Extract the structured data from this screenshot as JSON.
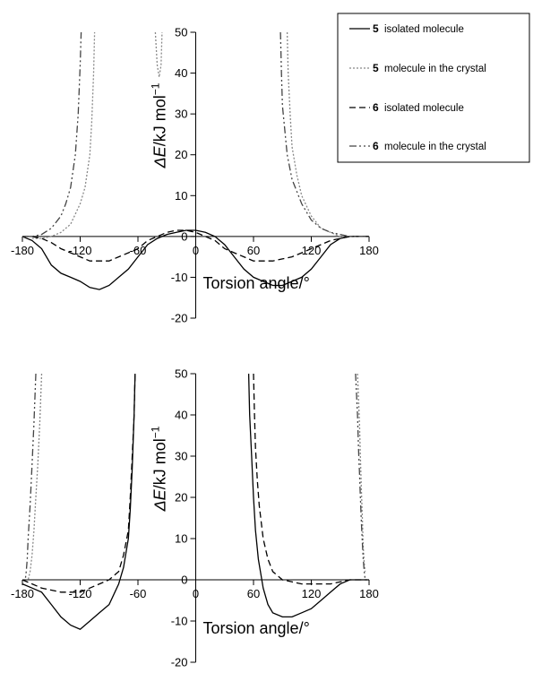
{
  "legend": {
    "items": [
      {
        "num": "5",
        "text": "isolated molecule",
        "dash": "",
        "color": "#000000"
      },
      {
        "num": "5",
        "text": "molecule in the crystal",
        "dash": "2,2",
        "color": "#888888"
      },
      {
        "num": "6",
        "text": "isolated molecule",
        "dash": "7,4",
        "color": "#000000"
      },
      {
        "num": "6",
        "text": "molecule in the crystal",
        "dash": "8,3,2,3,2,3",
        "color": "#444444"
      }
    ]
  },
  "chart_data": [
    {
      "type": "line",
      "ylabel_symbol": "ΔE",
      "ylabel_rest": "/kJ mol",
      "ylabel_sup": "−1",
      "xlabel": "Torsion angle/°",
      "xlim": [
        -180,
        180
      ],
      "ylim": [
        -20,
        50
      ],
      "x_ticks": [
        -180,
        -120,
        -60,
        0,
        60,
        120,
        180
      ],
      "y_ticks": [
        -20,
        -10,
        0,
        10,
        20,
        30,
        40,
        50
      ],
      "series": [
        {
          "name": "5 isolated molecule",
          "x": [
            -180,
            -170,
            -160,
            -150,
            -140,
            -130,
            -120,
            -110,
            -100,
            -90,
            -80,
            -70,
            -60,
            -50,
            -40,
            -30,
            -20,
            -10,
            0,
            10,
            20,
            30,
            40,
            50,
            60,
            70,
            80,
            90,
            100,
            110,
            120,
            130,
            140,
            150,
            160,
            170,
            180
          ],
          "y": [
            0,
            -1,
            -3,
            -7,
            -9,
            -10,
            -11,
            -12.5,
            -13,
            -12,
            -10,
            -8,
            -5,
            -2,
            -0.5,
            0.5,
            1,
            1.5,
            1.5,
            1,
            0,
            -2,
            -5,
            -8,
            -10,
            -11,
            -12,
            -12,
            -11,
            -10,
            -8,
            -5,
            -2,
            -0.5,
            0,
            0,
            0
          ]
        },
        {
          "name": "5 molecule in the crystal",
          "x": [
            -170,
            -160,
            -150,
            -140,
            -130,
            -120,
            -115,
            -110,
            -108,
            -106,
            -105,
            -42,
            -40,
            -38,
            -36,
            -35,
            95,
            96,
            98,
            100,
            105,
            110,
            120,
            130,
            140,
            150,
            160,
            170,
            180
          ],
          "y": [
            -0.5,
            -0.5,
            0,
            1,
            3,
            8,
            12,
            20,
            28,
            40,
            50,
            50,
            42,
            39,
            42,
            50,
            50,
            40,
            30,
            22,
            15,
            10,
            5,
            2,
            1,
            0,
            0,
            0,
            0
          ]
        },
        {
          "name": "6 isolated molecule",
          "x": [
            -180,
            -170,
            -160,
            -150,
            -140,
            -130,
            -120,
            -110,
            -100,
            -90,
            -80,
            -70,
            -60,
            -50,
            -40,
            -30,
            -20,
            -10,
            0,
            10,
            20,
            30,
            40,
            50,
            60,
            70,
            80,
            90,
            100,
            110,
            120,
            130,
            140,
            150,
            160,
            170,
            180
          ],
          "y": [
            0,
            0,
            -0.5,
            -1.5,
            -3,
            -4,
            -5,
            -6,
            -6,
            -6,
            -5,
            -4,
            -3,
            -1,
            0,
            1,
            1.5,
            1.5,
            1,
            0,
            -1,
            -3,
            -4,
            -5,
            -6,
            -6,
            -6,
            -5.5,
            -5,
            -4,
            -3,
            -2,
            -1,
            -0.5,
            0,
            0,
            0
          ]
        },
        {
          "name": "6 molecule in the crystal",
          "x": [
            -180,
            -170,
            -160,
            -150,
            -140,
            -135,
            -130,
            -125,
            -122,
            -120,
            -119,
            88,
            89,
            90,
            95,
            100,
            110,
            120,
            130,
            140,
            150,
            160,
            170,
            180
          ],
          "y": [
            0,
            0,
            0.5,
            2,
            5,
            8,
            12,
            20,
            30,
            42,
            50,
            50,
            40,
            32,
            20,
            14,
            8,
            4,
            2,
            1,
            0.5,
            0,
            0,
            0
          ]
        }
      ]
    },
    {
      "type": "line",
      "ylabel_symbol": "ΔE",
      "ylabel_rest": "/kJ mol",
      "ylabel_sup": "−1",
      "xlabel": "Torsion angle/°",
      "xlim": [
        -180,
        180
      ],
      "ylim": [
        -20,
        50
      ],
      "x_ticks": [
        -180,
        -120,
        -60,
        0,
        60,
        120,
        180
      ],
      "y_ticks": [
        -20,
        -10,
        0,
        10,
        20,
        30,
        40,
        50
      ],
      "series": [
        {
          "name": "5 isolated molecule",
          "x": [
            -180,
            -170,
            -160,
            -150,
            -140,
            -130,
            -120,
            -110,
            -100,
            -90,
            -80,
            -75,
            -70,
            -68,
            -66,
            -64,
            -63,
            55,
            56,
            58,
            60,
            62,
            65,
            70,
            75,
            80,
            90,
            100,
            110,
            120,
            130,
            140,
            150,
            160,
            170,
            178
          ],
          "y": [
            -1,
            -2,
            -3,
            -6,
            -9,
            -11,
            -12,
            -10,
            -8,
            -6,
            -1,
            3,
            10,
            17,
            27,
            40,
            50,
            50,
            40,
            30,
            20,
            12,
            5,
            -2,
            -6,
            -8,
            -9,
            -9,
            -8,
            -7,
            -5,
            -3,
            -1,
            0,
            0,
            0
          ]
        },
        {
          "name": "5 molecule in the crystal",
          "x": [
            -160,
            -162,
            -164,
            -166,
            -168,
            -170,
            -172,
            -174,
            -175,
            168,
            170,
            171,
            172,
            173,
            174,
            175,
            176
          ],
          "y": [
            50,
            38,
            28,
            20,
            12,
            6,
            2,
            0,
            0,
            50,
            38,
            30,
            22,
            15,
            8,
            4,
            2
          ]
        },
        {
          "name": "6 isolated molecule",
          "x": [
            -180,
            -170,
            -160,
            -150,
            -140,
            -130,
            -120,
            -110,
            -100,
            -90,
            -80,
            -75,
            -70,
            -68,
            -66,
            -64,
            -63,
            60,
            61,
            62,
            64,
            66,
            70,
            75,
            80,
            90,
            100,
            110,
            120,
            130,
            140,
            150,
            160,
            170,
            180
          ],
          "y": [
            0,
            -1,
            -2,
            -2.5,
            -3,
            -3,
            -3,
            -2,
            -1,
            0,
            2,
            6,
            12,
            20,
            30,
            40,
            50,
            50,
            40,
            32,
            24,
            18,
            10,
            5,
            2,
            0,
            -0.5,
            -1,
            -1,
            -1,
            -1,
            -0.5,
            0,
            0,
            0
          ]
        },
        {
          "name": "6 molecule in the crystal",
          "x": [
            -166,
            -168,
            -170,
            -172,
            -174,
            -175,
            -176,
            -177,
            166,
            168,
            169,
            170,
            171,
            172,
            173,
            174,
            175,
            176
          ],
          "y": [
            50,
            38,
            28,
            18,
            10,
            5,
            2,
            0,
            50,
            40,
            32,
            26,
            20,
            14,
            9,
            5,
            2,
            0
          ]
        }
      ]
    }
  ]
}
